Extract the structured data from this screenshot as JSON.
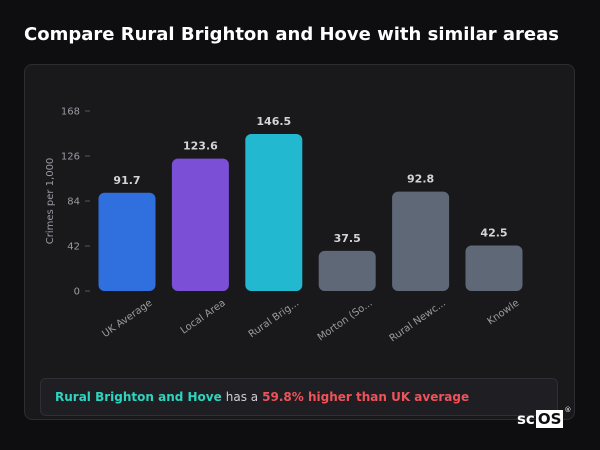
{
  "page": {
    "title": "Compare Rural Brighton and Hove with similar areas"
  },
  "summary": {
    "area_name": "Rural Brighton and Hove",
    "connector": "has a",
    "difference": "59.8% higher than UK average"
  },
  "logo": {
    "text_sc": "sc",
    "text_os": "OS",
    "mark": "®"
  },
  "colors": {
    "uk_average": "#2f6fde",
    "local_area": "#7b4fd6",
    "selected_area": "#22b8cf",
    "other_areas": "#5f6877",
    "highlight_text": "#2dd4bf",
    "difference_text": "#f0525a"
  },
  "chart_data": {
    "type": "bar",
    "title": "",
    "xlabel": "",
    "ylabel": "Crimes per 1,000",
    "ylim": [
      0,
      168
    ],
    "yticks": [
      0,
      42,
      84,
      126,
      168
    ],
    "grid": false,
    "legend": "none",
    "categories": [
      "UK Average",
      "Local Area",
      "Rural Brig...",
      "Morton (So...",
      "Rural Newc...",
      "Knowle"
    ],
    "values": [
      91.7,
      123.6,
      146.5,
      37.5,
      92.8,
      42.5
    ],
    "value_labels": [
      "91.7",
      "123.6",
      "146.5",
      "37.5",
      "92.8",
      "42.5"
    ],
    "bar_colors": [
      "#2f6fde",
      "#7b4fd6",
      "#22b8cf",
      "#5f6877",
      "#5f6877",
      "#5f6877"
    ]
  }
}
